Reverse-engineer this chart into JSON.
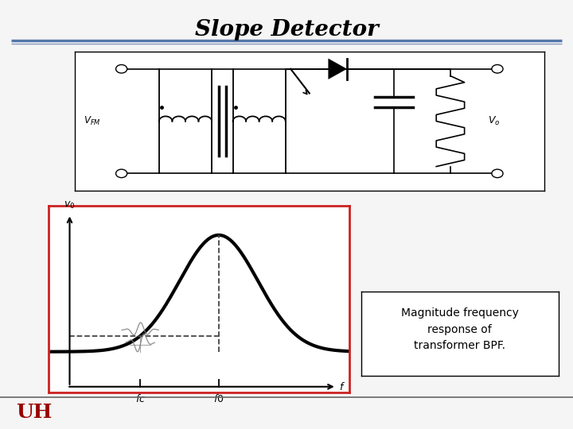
{
  "title": "Slope Detector",
  "title_fontsize": 20,
  "title_fontstyle": "italic",
  "title_fontweight": "bold",
  "white": "#ffffff",
  "red_border": "#cc2222",
  "blue_line1": "#5577aa",
  "blue_line2": "#8899bb",
  "black": "#000000",
  "dark_red": "#990000",
  "gray": "#666666",
  "light_gray": "#aaaaaa",
  "annotation_text": "Magnitude frequency\nresponse of\ntransformer BPF.",
  "annotation_fontsize": 10,
  "dashed_color": "#444444",
  "slide_bg": "#f5f5f5",
  "circuit_bg": "#ffffff",
  "plot_bg": "#ffffff"
}
